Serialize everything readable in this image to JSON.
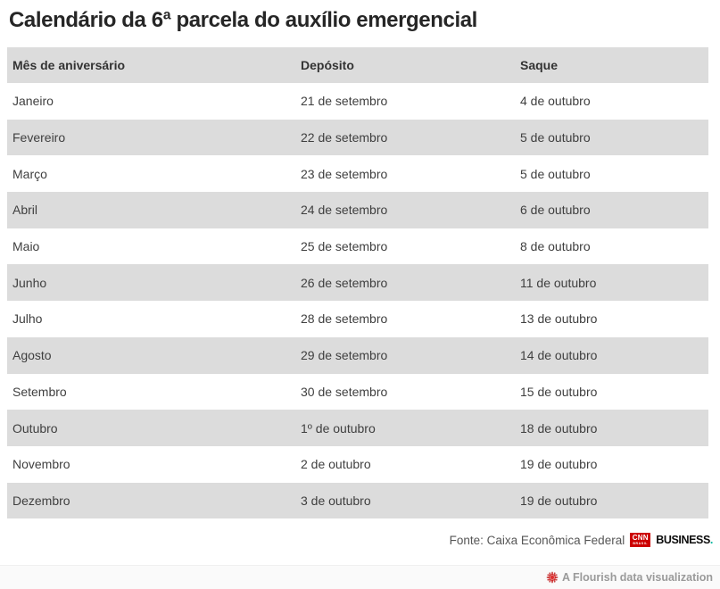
{
  "title": "Calendário da 6ª parcela do auxílio emergencial",
  "chart_data": {
    "type": "table",
    "title": "Calendário da 6ª parcela do auxílio emergencial",
    "columns": [
      "Mês de aniversário",
      "Depósito",
      "Saque"
    ],
    "rows": [
      [
        "Janeiro",
        "21 de setembro",
        "4 de outubro"
      ],
      [
        "Fevereiro",
        "22 de setembro",
        "5 de outubro"
      ],
      [
        "Março",
        "23 de setembro",
        "5 de outubro"
      ],
      [
        "Abril",
        "24 de setembro",
        "6 de outubro"
      ],
      [
        "Maio",
        "25 de setembro",
        "8 de outubro"
      ],
      [
        "Junho",
        "26 de setembro",
        "11 de outubro"
      ],
      [
        "Julho",
        "28 de setembro",
        "13 de outubro"
      ],
      [
        "Agosto",
        "29 de setembro",
        "14 de outubro"
      ],
      [
        "Setembro",
        "30 de setembro",
        "15 de outubro"
      ],
      [
        "Outubro",
        "1º de outubro",
        "18 de outubro"
      ],
      [
        "Novembro",
        "2 de outubro",
        "19 de outubro"
      ],
      [
        "Dezembro",
        "3 de outubro",
        "19 de outubro"
      ]
    ],
    "layout": {
      "striped_rows": true,
      "stripe_color": "#dcdcdc",
      "header_background": "#dcdcdc"
    }
  },
  "footer": {
    "source_label": "Fonte: Caixa Econômica Federal",
    "logo": {
      "cnn": "CNN",
      "brasil": "BRASIL",
      "business": "BUSINESS",
      "period": "."
    }
  },
  "attribution": {
    "text": "A Flourish data visualization"
  },
  "colors": {
    "title_text": "#262626",
    "stripe_grey": "#dcdcdc",
    "cell_text": "#3f3f3f",
    "source_text": "#565656",
    "cnn_red": "#cc0000",
    "business_teal": "#00b8a1",
    "flourish_red": "#cf2929",
    "attribution_text": "#9a9a9a"
  }
}
